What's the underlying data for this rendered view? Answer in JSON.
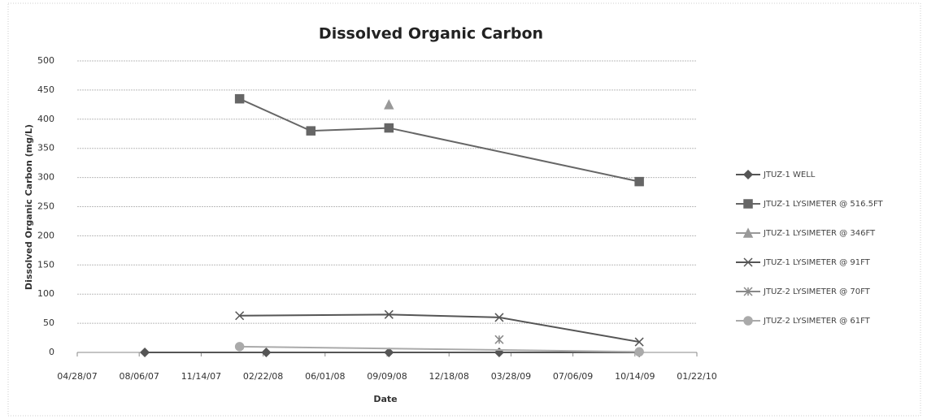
{
  "chart_data": {
    "type": "line",
    "title": "Dissolved Organic Carbon",
    "xlabel": "Date",
    "ylabel": "Dissolved Organic Carbon (mg/L)",
    "xlim": [
      "04/28/07",
      "01/22/10"
    ],
    "xticks": [
      "04/28/07",
      "08/06/07",
      "11/14/07",
      "02/22/08",
      "06/01/08",
      "09/09/08",
      "12/18/08",
      "03/28/09",
      "07/06/09",
      "10/14/09",
      "01/22/10"
    ],
    "ylim": [
      0,
      500
    ],
    "yticks": [
      0,
      50,
      100,
      150,
      200,
      250,
      300,
      350,
      400,
      450,
      500
    ],
    "grid": true,
    "legend": "right",
    "series": [
      {
        "name": "JTUZ-1 WELL",
        "color": "#555555",
        "marker": "diamond",
        "x": [
          "08/15/07",
          "02/27/08",
          "09/12/08",
          "03/09/09",
          "10/21/09"
        ],
        "values": [
          0,
          0,
          0,
          0,
          0
        ]
      },
      {
        "name": "JTUZ-1 LYSIMETER @ 516.5FT",
        "color": "#666666",
        "marker": "square",
        "x": [
          "01/15/08",
          "05/09/08",
          "09/12/08",
          "10/21/09"
        ],
        "values": [
          435,
          380,
          385,
          293
        ]
      },
      {
        "name": "JTUZ-1 LYSIMETER @ 346FT",
        "color": "#999999",
        "marker": "triangle",
        "x": [
          "09/12/08"
        ],
        "values": [
          425
        ]
      },
      {
        "name": "JTUZ-1 LYSIMETER @ 91FT",
        "color": "#555555",
        "marker": "x",
        "x": [
          "01/15/08",
          "09/12/08",
          "03/09/09",
          "10/21/09"
        ],
        "values": [
          63,
          65,
          60,
          18
        ]
      },
      {
        "name": "JTUZ-2 LYSIMETER @ 70FT",
        "color": "#888888",
        "marker": "star",
        "x": [
          "03/09/09"
        ],
        "values": [
          22
        ]
      },
      {
        "name": "JTUZ-2 LYSIMETER @ 61FT",
        "color": "#aaaaaa",
        "marker": "circle",
        "x": [
          "01/15/08",
          "10/21/09"
        ],
        "values": [
          10,
          1
        ]
      }
    ]
  }
}
